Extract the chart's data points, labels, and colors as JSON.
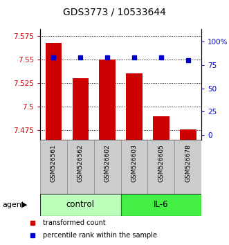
{
  "title": "GDS3773 / 10533644",
  "samples": [
    "GSM526561",
    "GSM526562",
    "GSM526602",
    "GSM526603",
    "GSM526605",
    "GSM526678"
  ],
  "bar_values": [
    7.568,
    7.53,
    7.55,
    7.535,
    7.49,
    7.476
  ],
  "percentile_values": [
    83,
    83,
    83,
    83,
    83,
    80
  ],
  "bar_color": "#cc0000",
  "percentile_color": "#0000cc",
  "ylim_left": [
    7.465,
    7.582
  ],
  "yticks_left": [
    7.475,
    7.5,
    7.525,
    7.55,
    7.575
  ],
  "ytick_labels_left": [
    "7.475",
    "7.5",
    "7.525",
    "7.55",
    "7.575"
  ],
  "ylim_right": [
    -5,
    113
  ],
  "yticks_right": [
    0,
    25,
    50,
    75,
    100
  ],
  "ytick_labels_right": [
    "0",
    "25",
    "50",
    "75",
    "100%"
  ],
  "groups": [
    {
      "label": "control",
      "indices": [
        0,
        1,
        2
      ],
      "color": "#bbffbb"
    },
    {
      "label": "IL-6",
      "indices": [
        3,
        4,
        5
      ],
      "color": "#44ee44"
    }
  ],
  "agent_label": "agent",
  "legend_items": [
    {
      "label": "transformed count",
      "color": "#cc0000"
    },
    {
      "label": "percentile rank within the sample",
      "color": "#0000cc"
    }
  ]
}
